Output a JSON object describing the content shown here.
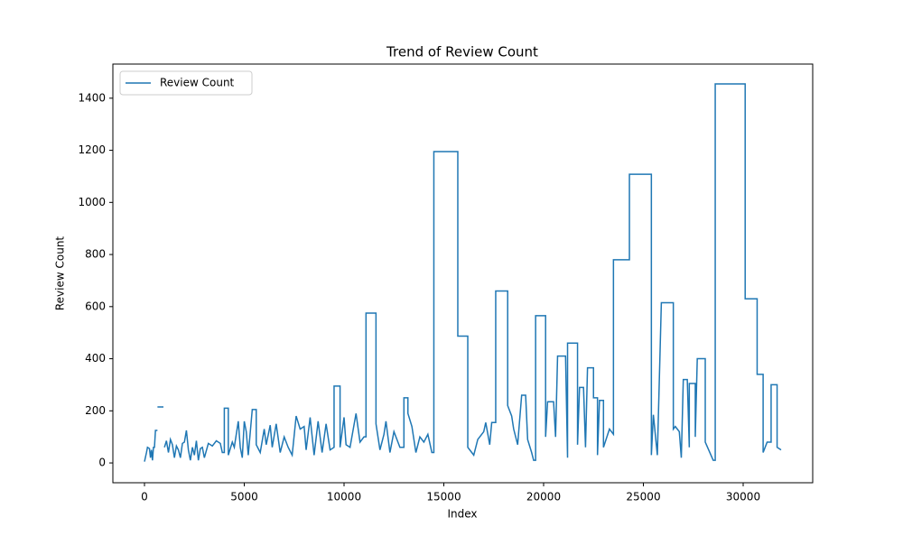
{
  "chart_data": {
    "type": "line",
    "title": "Trend of Review Count",
    "xlabel": "Index",
    "ylabel": "Review Count",
    "x": [
      0,
      100,
      150,
      250,
      300,
      350,
      400,
      450,
      500,
      550,
      650,
      650,
      650,
      950,
      975,
      1000,
      1100,
      1200,
      1300,
      1400,
      1500,
      1600,
      1700,
      1800,
      1900,
      2000,
      2100,
      2200,
      2300,
      2400,
      2500,
      2600,
      2700,
      2800,
      2900,
      3000,
      3200,
      3400,
      3600,
      3800,
      3900,
      4000,
      4000,
      4200,
      4200,
      4400,
      4500,
      4700,
      4800,
      4900,
      5000,
      5100,
      5200,
      5400,
      5600,
      5600,
      5800,
      6000,
      6100,
      6300,
      6400,
      6600,
      6800,
      7000,
      7200,
      7400,
      7600,
      7800,
      8000,
      8100,
      8300,
      8500,
      8700,
      8900,
      9100,
      9300,
      9500,
      9500,
      9800,
      9800,
      10000,
      10100,
      10300,
      10600,
      10800,
      11000,
      11100,
      11100,
      11600,
      11600,
      11800,
      12000,
      12100,
      12300,
      12500,
      12800,
      13000,
      13000,
      13200,
      13200,
      13400,
      13600,
      13800,
      14000,
      14200,
      14400,
      14500,
      14500,
      15700,
      15700,
      16200,
      16200,
      16500,
      16700,
      17000,
      17100,
      17300,
      17400,
      17600,
      17600,
      18200,
      18200,
      18400,
      18500,
      18700,
      18900,
      19100,
      19200,
      19400,
      19500,
      19600,
      19600,
      20100,
      20100,
      20200,
      20500,
      20600,
      20700,
      21100,
      21200,
      21200,
      21700,
      21700,
      21800,
      22000,
      22100,
      22200,
      22500,
      22500,
      22700,
      22700,
      22800,
      23000,
      23000,
      23300,
      23500,
      23500,
      24300,
      24300,
      25400,
      25400,
      25500,
      25700,
      25900,
      26500,
      26500,
      26600,
      26800,
      26900,
      27000,
      27200,
      27300,
      27300,
      27600,
      27600,
      27700,
      28100,
      28100,
      28500,
      28600,
      28600,
      30100,
      30100,
      30700,
      30700,
      31000,
      31000,
      31200,
      31400,
      31400,
      31700,
      31700,
      31800,
      31900
    ],
    "series": [
      {
        "name": "Review Count",
        "color": "#1f77b4",
        "values": [
          5,
          40,
          60,
          55,
          20,
          50,
          10,
          60,
          60,
          125,
          125,
          null,
          215,
          215,
          null,
          60,
          85,
          40,
          90,
          70,
          20,
          65,
          50,
          20,
          75,
          80,
          125,
          50,
          10,
          60,
          30,
          85,
          10,
          55,
          60,
          20,
          75,
          65,
          85,
          75,
          40,
          40,
          210,
          210,
          30,
          80,
          60,
          160,
          60,
          20,
          160,
          120,
          30,
          205,
          205,
          70,
          40,
          130,
          70,
          145,
          60,
          150,
          40,
          100,
          60,
          30,
          180,
          130,
          140,
          50,
          175,
          30,
          160,
          40,
          150,
          50,
          60,
          295,
          295,
          60,
          175,
          70,
          60,
          190,
          80,
          100,
          100,
          575,
          575,
          150,
          50,
          110,
          160,
          40,
          120,
          60,
          60,
          250,
          250,
          190,
          140,
          40,
          100,
          80,
          110,
          40,
          40,
          1195,
          1195,
          487,
          487,
          60,
          30,
          90,
          120,
          155,
          70,
          155,
          155,
          660,
          660,
          220,
          180,
          130,
          70,
          260,
          260,
          90,
          40,
          10,
          10,
          565,
          565,
          100,
          235,
          235,
          100,
          410,
          410,
          20,
          460,
          460,
          70,
          290,
          290,
          60,
          365,
          365,
          250,
          250,
          30,
          240,
          240,
          60,
          130,
          110,
          780,
          780,
          1108,
          1108,
          30,
          185,
          30,
          615,
          615,
          130,
          140,
          120,
          20,
          320,
          320,
          60,
          305,
          305,
          100,
          400,
          400,
          80,
          10,
          10,
          1455,
          1455,
          630,
          630,
          340,
          340,
          40,
          80,
          80,
          300,
          300,
          60,
          55,
          50
        ]
      }
    ],
    "xlim": [
      -1584,
      33484
    ],
    "ylim": [
      -76,
      1531
    ],
    "xticks": [
      0,
      5000,
      10000,
      15000,
      20000,
      25000,
      30000
    ],
    "yticks": [
      0,
      200,
      400,
      600,
      800,
      1000,
      1200,
      1400
    ],
    "legend": "upper left"
  }
}
